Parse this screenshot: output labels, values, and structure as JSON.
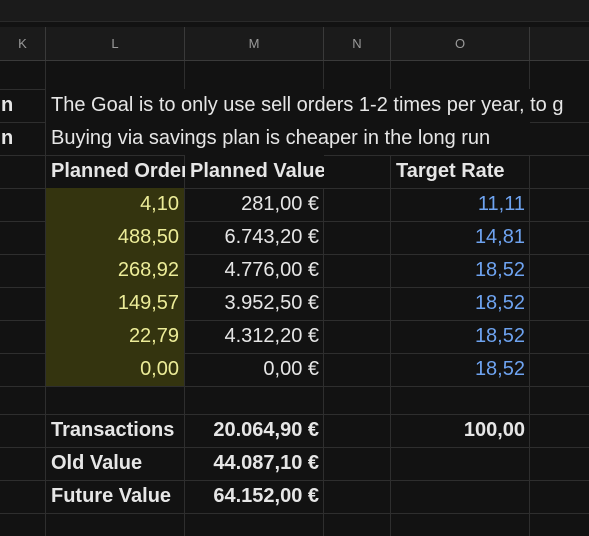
{
  "columns": {
    "K": "K",
    "L": "L",
    "M": "M",
    "N": "N",
    "O": "O"
  },
  "rows": {
    "note1": {
      "k": "n",
      "text": "The Goal is to only use sell orders 1-2 times per year, to g"
    },
    "note2": {
      "k": "n",
      "text": "Buying via savings plan is cheaper in the long run"
    },
    "header": {
      "planned_orders": "Planned Orders",
      "planned_value": "Planned Value",
      "target_rate": "Target Rate"
    },
    "data": [
      {
        "orders": "4,10",
        "value": "281,00 €",
        "rate": "11,11"
      },
      {
        "orders": "488,50",
        "value": "6.743,20 €",
        "rate": "14,81"
      },
      {
        "orders": "268,92",
        "value": "4.776,00 €",
        "rate": "18,52"
      },
      {
        "orders": "149,57",
        "value": "3.952,50 €",
        "rate": "18,52"
      },
      {
        "orders": "22,79",
        "value": "4.312,20 €",
        "rate": "18,52"
      },
      {
        "orders": "0,00",
        "value": "0,00 €",
        "rate": "18,52"
      }
    ],
    "summary": {
      "transactions_label": "Transactions",
      "transactions_value": "20.064,90 €",
      "transactions_rate": "100,00",
      "old_label": "Old Value",
      "old_value": "44.087,10 €",
      "future_label": "Future Value",
      "future_value": "64.152,00 €"
    }
  },
  "colors": {
    "background": "#121212",
    "highlight": "#34340f",
    "highlight_text": "#ecec98",
    "rate_text": "#6ea3f0"
  }
}
